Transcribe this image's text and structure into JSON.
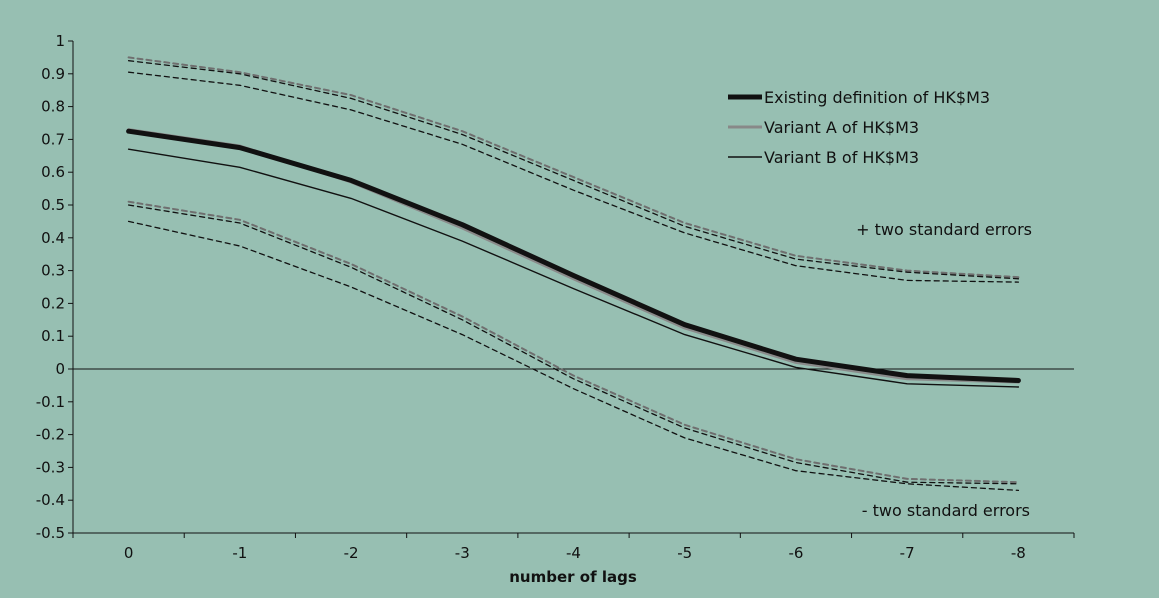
{
  "chart_data": {
    "type": "line",
    "title": "",
    "xlabel": "number of lags",
    "ylabel": "",
    "categories": [
      "0",
      "-1",
      "-2",
      "-3",
      "-4",
      "-5",
      "-6",
      "-7",
      "-8"
    ],
    "ylim": [
      -0.5,
      1
    ],
    "yticks": [
      "1",
      "0.9",
      "0.8",
      "0.7",
      "0.6",
      "0.5",
      "0.4",
      "0.3",
      "0.2",
      "0.1",
      "0",
      "-0.1",
      "-0.2",
      "-0.3",
      "-0.4",
      "-0.5"
    ],
    "grid": false,
    "legend_position": "top-right",
    "series": [
      {
        "name": "Existing definition of HK$M3",
        "style": "thick-black",
        "values": [
          0.725,
          0.675,
          0.575,
          0.44,
          0.285,
          0.135,
          0.03,
          -0.02,
          -0.035
        ]
      },
      {
        "name": "Variant A of HK$M3",
        "style": "grey",
        "values": [
          0.73,
          0.68,
          0.57,
          0.43,
          0.275,
          0.125,
          0.02,
          -0.03,
          -0.04
        ]
      },
      {
        "name": "Variant B of HK$M3",
        "style": "thin-black",
        "values": [
          0.67,
          0.615,
          0.52,
          0.39,
          0.245,
          0.105,
          0.005,
          -0.045,
          -0.055
        ]
      },
      {
        "style": "dashed-grey",
        "values": [
          0.95,
          0.905,
          0.835,
          0.725,
          0.585,
          0.445,
          0.345,
          0.3,
          0.28
        ]
      },
      {
        "style": "dashed-black",
        "values": [
          0.94,
          0.9,
          0.825,
          0.715,
          0.575,
          0.435,
          0.335,
          0.295,
          0.275
        ]
      },
      {
        "style": "dashed-black",
        "values": [
          0.905,
          0.865,
          0.79,
          0.685,
          0.545,
          0.415,
          0.315,
          0.27,
          0.265
        ]
      },
      {
        "style": "dashed-grey",
        "values": [
          0.51,
          0.455,
          0.32,
          0.16,
          -0.02,
          -0.17,
          -0.275,
          -0.335,
          -0.345
        ]
      },
      {
        "style": "dashed-black",
        "values": [
          0.5,
          0.445,
          0.31,
          0.15,
          -0.03,
          -0.18,
          -0.285,
          -0.345,
          -0.35
        ]
      },
      {
        "style": "dashed-black",
        "values": [
          0.45,
          0.375,
          0.25,
          0.105,
          -0.06,
          -0.21,
          -0.31,
          -0.35,
          -0.37
        ]
      }
    ],
    "annotations": [
      "+ two standard errors",
      "- two standard errors"
    ]
  }
}
